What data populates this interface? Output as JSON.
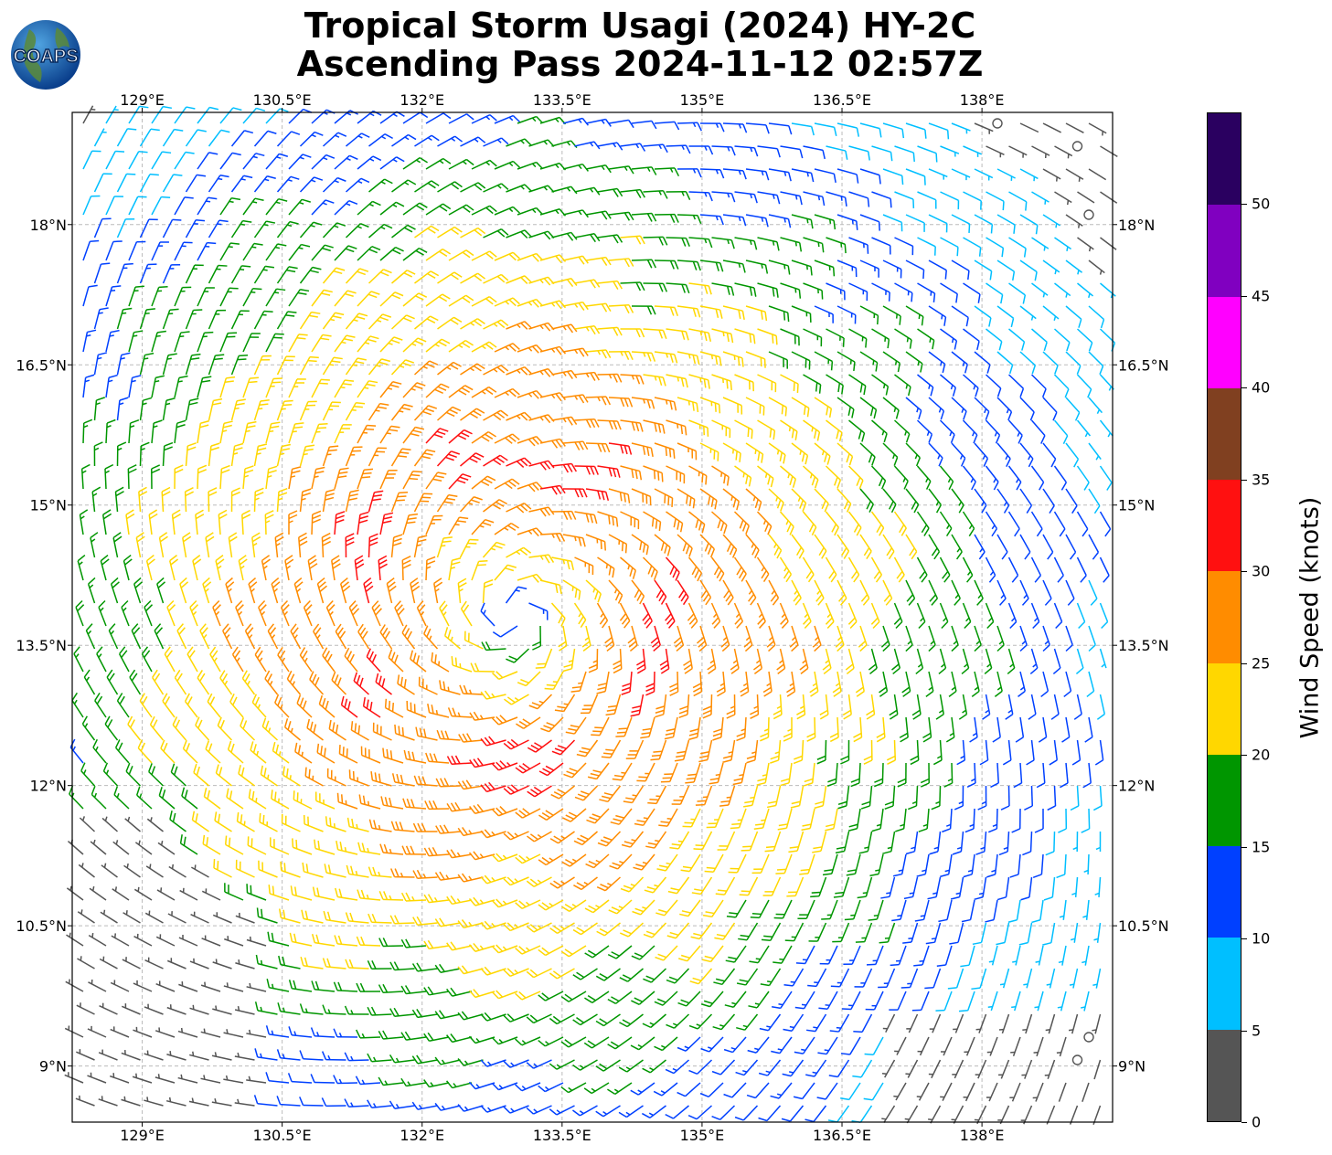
{
  "logo": {
    "text": "COAPS",
    "icon": "globe-logo-icon"
  },
  "title": {
    "line1": "Tropical Storm Usagi (2024) HY-2C",
    "line2": "Ascending Pass 2024-11-12 02:57Z"
  },
  "map": {
    "lon_range": [
      128.25,
      139.4
    ],
    "lat_range": [
      8.4,
      19.2
    ],
    "lon_ticks": [
      "129°E",
      "130.5°E",
      "132°E",
      "133.5°E",
      "135°E",
      "136.5°E",
      "138°E"
    ],
    "lon_tick_values": [
      129,
      130.5,
      132,
      133.5,
      135,
      136.5,
      138
    ],
    "lat_ticks": [
      "18°N",
      "16.5°N",
      "15°N",
      "13.5°N",
      "12°N",
      "10.5°N",
      "9°N"
    ],
    "lat_tick_values": [
      18,
      16.5,
      15,
      13.5,
      12,
      10.5,
      9
    ],
    "storm_center": {
      "lon": 133.0,
      "lat": 13.8
    },
    "grid": true
  },
  "colorbar": {
    "label": "Wind Speed (knots)",
    "bounds": [
      0,
      5,
      10,
      15,
      20,
      25,
      30,
      35,
      40,
      45,
      50,
      55
    ],
    "tick_labels": [
      "0",
      "5",
      "10",
      "15",
      "20",
      "25",
      "30",
      "35",
      "40",
      "45",
      "50"
    ],
    "colors": [
      "#555555",
      "#00bfff",
      "#0040ff",
      "#009600",
      "#ffd700",
      "#ff8c00",
      "#ff1010",
      "#804020",
      "#ff00ff",
      "#8000c0",
      "#2a0060"
    ]
  }
}
